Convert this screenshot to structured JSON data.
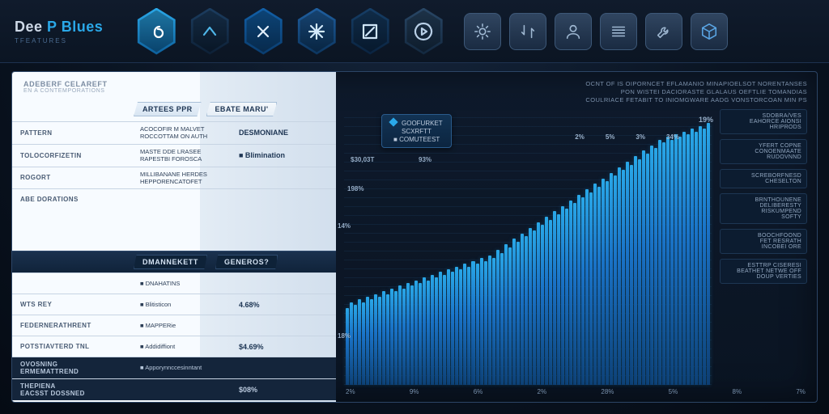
{
  "brand": {
    "top1": "Dee",
    "top2": "P",
    "top3": "Blues",
    "sub": "TFEATURES"
  },
  "hex_icons": [
    {
      "name": "six-icon",
      "bg": "linear-gradient(#2aa8e8,#0d5f9b)",
      "glyph": "6",
      "stroke": "#ffffff"
    },
    {
      "name": "caret-up-icon",
      "bg": "linear-gradient(#1c3d60,#0d2036)",
      "glyph": "^",
      "stroke": "#4fb7ea"
    },
    {
      "name": "x-icon",
      "bg": "linear-gradient(#1260a8,#0a3c6d)",
      "glyph": "X",
      "stroke": "#e4f0fb"
    },
    {
      "name": "fan-icon",
      "bg": "linear-gradient(#1f5fa0,#0c355e)",
      "glyph": "*",
      "stroke": "#d2e9fb"
    },
    {
      "name": "slash-box-icon",
      "bg": "linear-gradient(#163e66,#0a2340)",
      "glyph": "/",
      "stroke": "#cfe5f7"
    },
    {
      "name": "play-ring-icon",
      "bg": "linear-gradient(#294766,#13283f)",
      "glyph": ">",
      "stroke": "#b8cfe6"
    }
  ],
  "sq_icons": [
    {
      "name": "gear-icon",
      "stroke": "#9fb8d2"
    },
    {
      "name": "swap-icon",
      "stroke": "#9fb8d2"
    },
    {
      "name": "user-icon",
      "stroke": "#9fb8d2"
    },
    {
      "name": "stack-icon",
      "stroke": "#9fb8d2"
    },
    {
      "name": "wrench-icon",
      "stroke": "#9fb8d2"
    },
    {
      "name": "cube-icon",
      "stroke": "#5aa5e4"
    }
  ],
  "left": {
    "header": {
      "h1": "ADEBERF CELAREFT",
      "h2": "EN A CONTEMPORATIONS"
    },
    "tabs": [
      "ARTEES PPR",
      "EBATE MARU'"
    ],
    "rows1": [
      {
        "c1": "PATTERN",
        "c2": "ACOCOFIR M MALVET\nROCCOTTAM ON AUTH",
        "c3": "DESMONIANE"
      },
      {
        "c1": "TOLOCORFIZETIN",
        "c2": "MASTE DDE LRASEE\nRAPESTBI FOROSCA",
        "c3": "■ Blimination"
      },
      {
        "c1": "ROGORT",
        "c2": "MILLIBANANE HERDES\nHEPPORENCATOFET",
        "c3": ""
      },
      {
        "c1": "ABE DORATIONS",
        "c2": "",
        "c3": ""
      }
    ],
    "section_tabs": [
      "DMANNEKETT",
      "GENEROS?"
    ],
    "rows2": [
      {
        "c1": "",
        "c2": "■ DNAHATINS",
        "c3": ""
      },
      {
        "c1": "WTS REY",
        "c2": "■ Blitisticon",
        "c3": "4.68%"
      },
      {
        "c1": "FEDERNERATHRENT",
        "c2": "■ MAPPERie",
        "c3": ""
      },
      {
        "c1": "POTSTIAVTERD TNL",
        "c2": "■ Addidiffiont",
        "c3": "$4.69%"
      },
      {
        "c1": "OVOSNING\nERMEMATTREND",
        "c2": "■ Apporynnccesinntant",
        "c3": ""
      },
      {
        "c1": "THEPIENA\nEACSST DOSSNED",
        "c2": "",
        "c3": "$08%"
      }
    ]
  },
  "right": {
    "header_line1": "OCNT OF IS OIPORNCET EFLAMANIO MINAPIOELSOT NORENTANSES",
    "header_line2": "PON WISTEI DACIORASTE GLALAUS OEFTLIE TOMANDIAS",
    "header_line3": "COULRIACE FETABIT TO INIOMGWARE AADG VONSTORCOAN MIN PS",
    "legend": {
      "l1": "GOOFURKET",
      "l2": "SCXRFTT",
      "l3": "COMUTEEST"
    },
    "point_label": "$30,03T",
    "pct_a": "93%",
    "pct_b": "198%",
    "top_ticks": [
      "2%",
      "5%",
      "3%",
      "34%"
    ],
    "top_end": "19%",
    "xticks": [
      "2%",
      "9%",
      "6%",
      "2%",
      "28%",
      "5%",
      "8%",
      "7%"
    ],
    "y_mid": "14%",
    "y_low": "18%",
    "chart": {
      "type": "bar",
      "bar_color_top": "#2aa8e8",
      "bar_color_mid": "#1a72c7",
      "bar_color_bot": "#0d3e73",
      "background": "#0b1a2d",
      "grid_color": "#16304c",
      "ylim": [
        0,
        100
      ],
      "values": [
        28,
        30,
        29,
        31,
        30,
        32,
        31,
        33,
        32,
        34,
        33,
        35,
        34,
        36,
        35,
        37,
        36,
        38,
        37,
        39,
        38,
        40,
        39,
        41,
        40,
        42,
        41,
        43,
        42,
        44,
        43,
        45,
        44,
        46,
        45,
        47,
        46,
        49,
        48,
        51,
        50,
        53,
        52,
        55,
        54,
        57,
        56,
        59,
        58,
        61,
        60,
        63,
        62,
        65,
        64,
        67,
        66,
        69,
        68,
        71,
        70,
        73,
        72,
        75,
        74,
        77,
        76,
        79,
        78,
        81,
        80,
        83,
        82,
        85,
        84,
        87,
        86,
        89,
        88,
        90,
        89,
        91,
        90,
        92,
        91,
        93,
        92,
        94,
        93,
        95
      ]
    },
    "strip": [
      [
        "SDOBRA/VES",
        "EAHORCE AIONSI",
        "HRIPRODS"
      ],
      [
        "YFERT COPNE",
        "CONOENMAATE",
        "RUDOVNND"
      ],
      [
        "SCREBORFNESD",
        "CHESELTON"
      ],
      [
        "BRNTHOUNENE",
        "DELIBERESTY",
        "RISKUMPEND",
        "SOFTY"
      ],
      [
        "BOOCHFOOND",
        "FET RESRATH",
        "INCOBEI ORE"
      ],
      [
        "ESTTRP CISERESI",
        "BEATHET NETWE OFF",
        "DOUP VERTIES"
      ]
    ]
  },
  "colors": {
    "bg_outer": "#0a1422",
    "panel_border": "#2c4566",
    "accent": "#2aa8e8",
    "text_primary": "#cdd8e6",
    "text_muted": "#7b90aa"
  }
}
